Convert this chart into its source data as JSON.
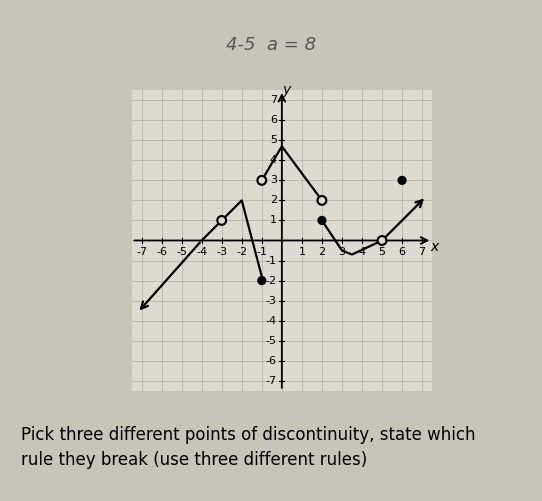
{
  "xlim": [
    -7.5,
    7.5
  ],
  "ylim": [
    -7.5,
    7.5
  ],
  "xticks": [
    -7,
    -6,
    -5,
    -4,
    -3,
    -2,
    -1,
    1,
    2,
    3,
    4,
    5,
    6,
    7
  ],
  "yticks": [
    -7,
    -6,
    -5,
    -4,
    -3,
    -2,
    -1,
    1,
    2,
    3,
    4,
    5,
    6,
    7
  ],
  "xlabel": "x",
  "ylabel": "y",
  "bg_outer": "#c8c4b8",
  "bg_inner": "#dedad0",
  "grid_color": "#b8b4a8",
  "top_strip_color": "#d0ccc0",
  "seg1": {
    "x": [
      -7.2,
      -4.0,
      -3.0
    ],
    "y": [
      -3.6,
      0.0,
      1.0
    ]
  },
  "seg2": {
    "x": [
      -3.0,
      -2.0,
      -1.0
    ],
    "y": [
      1.0,
      2.0,
      -1.8
    ]
  },
  "seg3": {
    "x": [
      -1.0,
      0.0,
      2.0
    ],
    "y": [
      3.0,
      4.7,
      2.0
    ]
  },
  "seg4": {
    "x": [
      2.0,
      3.0,
      3.5,
      5.0
    ],
    "y": [
      1.0,
      -0.5,
      -0.7,
      0.0
    ]
  },
  "seg5": {
    "x": [
      5.0,
      7.2
    ],
    "y": [
      0.0,
      2.2
    ]
  },
  "open_circles": [
    [
      -3,
      1
    ],
    [
      -1,
      3
    ],
    [
      2,
      2
    ],
    [
      5,
      0
    ]
  ],
  "filled_circles": [
    [
      -1,
      -2
    ],
    [
      2,
      1
    ],
    [
      6,
      3
    ]
  ],
  "font_size_label": 10,
  "font_size_tick": 8,
  "caption": "Pick three different points of discontinuity, state which\nrule they break (use three different rules)",
  "caption_fontsize": 12
}
